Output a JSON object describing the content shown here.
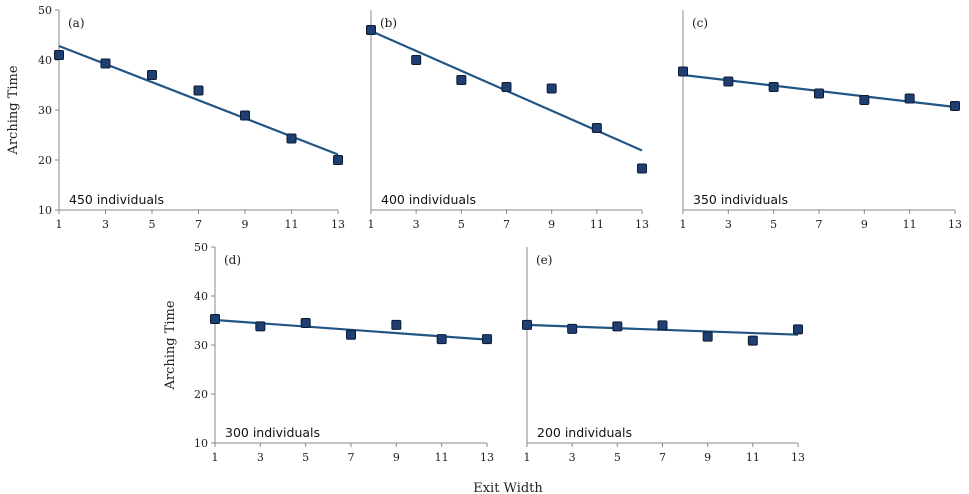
{
  "figure": {
    "xlabel": "Exit Width",
    "ylabel": "Arching Time"
  },
  "styles": {
    "marker_fill": "#1f3f73",
    "marker_edge": "#0b1a33",
    "line_color": "#215583",
    "axis_color": "#8a8a8a"
  },
  "chart_data": [
    {
      "type": "scatter",
      "title": "(a)",
      "annotation": "450 individuals",
      "x": [
        1,
        3,
        5,
        7,
        9,
        11,
        13
      ],
      "y": [
        41.0,
        39.3,
        37.0,
        33.9,
        28.9,
        24.3,
        20.0
      ],
      "trendline": {
        "x": [
          1,
          13
        ],
        "y": [
          42.8,
          21.1
        ]
      },
      "xticks": [
        1,
        3,
        5,
        7,
        9,
        11,
        13
      ],
      "yticks": [
        10,
        20,
        30,
        40,
        50
      ],
      "xlim": [
        1,
        13
      ],
      "ylim": [
        10,
        50
      ],
      "xlabel": "",
      "ylabel": "Arching Time"
    },
    {
      "type": "scatter",
      "title": "(b)",
      "annotation": "400 individuals",
      "x": [
        1,
        3,
        5,
        7,
        9,
        11,
        13
      ],
      "y": [
        46.0,
        40.0,
        36.0,
        34.6,
        34.3,
        26.4,
        18.3
      ],
      "trendline": {
        "x": [
          1,
          13
        ],
        "y": [
          45.8,
          21.9
        ]
      },
      "xticks": [
        1,
        3,
        5,
        7,
        9,
        11,
        13
      ],
      "yticks": [],
      "xlim": [
        1,
        13
      ],
      "ylim": [
        10,
        50
      ],
      "xlabel": "",
      "ylabel": ""
    },
    {
      "type": "scatter",
      "title": "(c)",
      "annotation": "350 individuals",
      "x": [
        1,
        3,
        5,
        7,
        9,
        11,
        13
      ],
      "y": [
        37.7,
        35.7,
        34.6,
        33.3,
        32.0,
        32.3,
        30.8
      ],
      "trendline": {
        "x": [
          1,
          13
        ],
        "y": [
          37.0,
          30.6
        ]
      },
      "xticks": [
        1,
        3,
        5,
        7,
        9,
        11,
        13
      ],
      "yticks": [],
      "xlim": [
        1,
        13
      ],
      "ylim": [
        10,
        50
      ],
      "xlabel": "",
      "ylabel": ""
    },
    {
      "type": "scatter",
      "title": "(d)",
      "annotation": "300 individuals",
      "x": [
        1,
        3,
        5,
        7,
        9,
        11,
        13
      ],
      "y": [
        35.3,
        33.8,
        34.5,
        32.1,
        34.1,
        31.2,
        31.2
      ],
      "trendline": {
        "x": [
          1,
          13
        ],
        "y": [
          35.1,
          31.1
        ]
      },
      "xticks": [
        1,
        3,
        5,
        7,
        9,
        11,
        13
      ],
      "yticks": [
        10,
        20,
        30,
        40,
        50
      ],
      "xlim": [
        1,
        13
      ],
      "ylim": [
        10,
        50
      ],
      "xlabel": "",
      "ylabel": "Arching Time"
    },
    {
      "type": "scatter",
      "title": "(e)",
      "annotation": "200 individuals",
      "x": [
        1,
        3,
        5,
        7,
        9,
        11,
        13
      ],
      "y": [
        34.1,
        33.3,
        33.8,
        34.0,
        31.7,
        30.9,
        33.2
      ],
      "trendline": {
        "x": [
          1,
          13
        ],
        "y": [
          34.1,
          32.1
        ]
      },
      "xticks": [
        1,
        3,
        5,
        7,
        9,
        11,
        13
      ],
      "yticks": [],
      "xlim": [
        1,
        13
      ],
      "ylim": [
        10,
        50
      ],
      "xlabel": "Exit Width",
      "ylabel": ""
    }
  ]
}
